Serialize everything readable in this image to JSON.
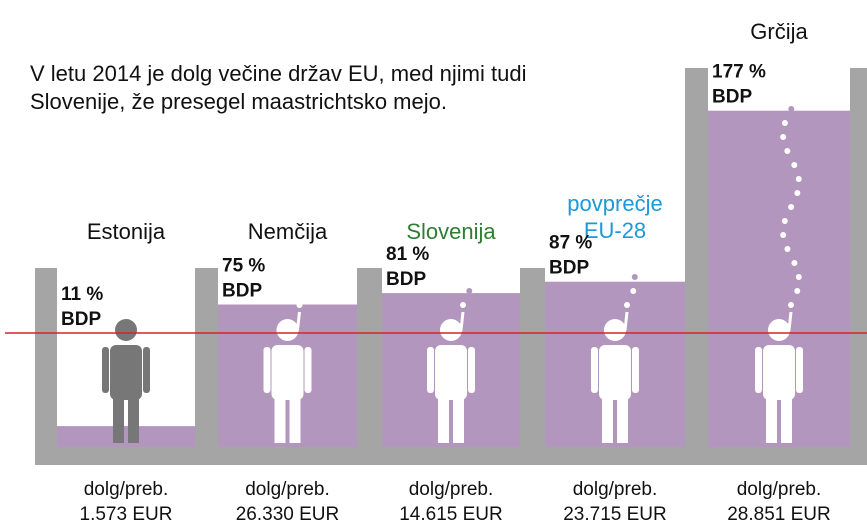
{
  "chart_data": {
    "type": "tank",
    "title_lines": [
      "V letu 2014 je dolg večine držav EU, med njimi tudi",
      "Slovenije, že presegel maastrichtsko mejo."
    ],
    "categories": [
      "Estonija",
      "Nemčija",
      "Slovenija",
      "povprečje EU-28",
      "Grčija"
    ],
    "label_colors": [
      "#111111",
      "#111111",
      "#2e7d32",
      "#1a9ad6",
      "#111111"
    ],
    "values": [
      11,
      75,
      81,
      87,
      177
    ],
    "value_labels": [
      "11 %",
      "75 %",
      "81 %",
      "87 %",
      "177 %"
    ],
    "unit_label": "BDP",
    "footer_label": "dolg/preb.",
    "debt_per_capita": [
      "1.573 EUR",
      "26.330 EUR",
      "14.615 EUR",
      "23.715 EUR",
      "28.851 EUR"
    ],
    "ylim": [
      0,
      200
    ],
    "threshold": 60,
    "color": "#b396bd",
    "wall_color": "#a5a5a5",
    "threshold_color": "#e02020"
  }
}
